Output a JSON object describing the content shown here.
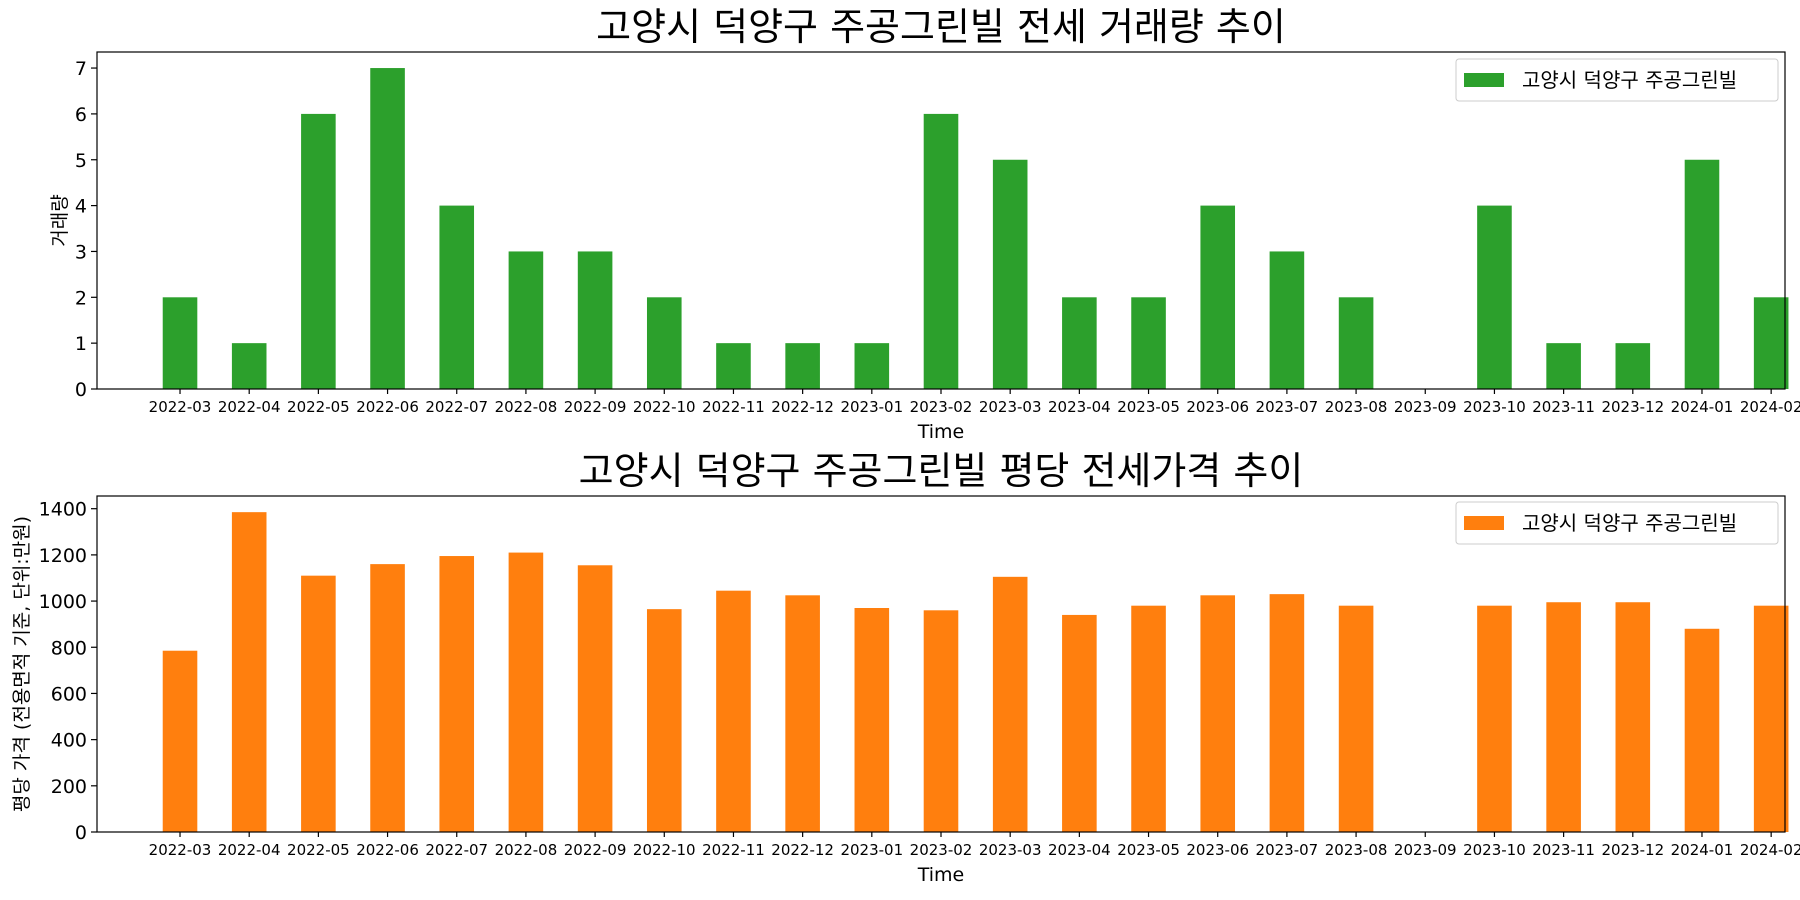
{
  "chart_data": [
    {
      "type": "bar",
      "title": "고양시 덕양구 주공그린빌 전세 거래량 추이",
      "xlabel": "Time",
      "ylabel": "거래량",
      "color": "#2ca02c",
      "legend_position": "top-right",
      "ylim": [
        0,
        7.35
      ],
      "yticks": [
        0,
        1,
        2,
        3,
        4,
        5,
        6,
        7
      ],
      "categories": [
        "2022-03",
        "2022-04",
        "2022-05",
        "2022-06",
        "2022-07",
        "2022-08",
        "2022-09",
        "2022-10",
        "2022-11",
        "2022-12",
        "2023-01",
        "2023-02",
        "2023-03",
        "2023-04",
        "2023-05",
        "2023-06",
        "2023-07",
        "2023-08",
        "2023-09",
        "2023-10",
        "2023-11",
        "2023-12",
        "2024-01",
        "2024-02"
      ],
      "series": [
        {
          "name": "고양시 덕양구 주공그린빌",
          "values": [
            2,
            1,
            6,
            7,
            4,
            3,
            3,
            2,
            1,
            1,
            1,
            6,
            5,
            2,
            2,
            4,
            3,
            2,
            0,
            4,
            1,
            1,
            5,
            2
          ]
        }
      ]
    },
    {
      "type": "bar",
      "title": "고양시 덕양구 주공그린빌 평당 전세가격 추이",
      "xlabel": "Time",
      "ylabel": "평당 가격 (전용면적 기준, 단위:만원)",
      "color": "#ff7f0e",
      "legend_position": "top-right",
      "ylim": [
        0,
        1455
      ],
      "yticks": [
        0,
        200,
        400,
        600,
        800,
        1000,
        1200,
        1400
      ],
      "categories": [
        "2022-03",
        "2022-04",
        "2022-05",
        "2022-06",
        "2022-07",
        "2022-08",
        "2022-09",
        "2022-10",
        "2022-11",
        "2022-12",
        "2023-01",
        "2023-02",
        "2023-03",
        "2023-04",
        "2023-05",
        "2023-06",
        "2023-07",
        "2023-08",
        "2023-09",
        "2023-10",
        "2023-11",
        "2023-12",
        "2024-01",
        "2024-02"
      ],
      "series": [
        {
          "name": "고양시 덕양구 주공그린빌",
          "values": [
            785,
            1385,
            1110,
            1160,
            1195,
            1210,
            1155,
            965,
            1045,
            1025,
            970,
            960,
            1105,
            940,
            980,
            1025,
            1030,
            980,
            null,
            980,
            995,
            995,
            880,
            980
          ]
        }
      ]
    }
  ]
}
